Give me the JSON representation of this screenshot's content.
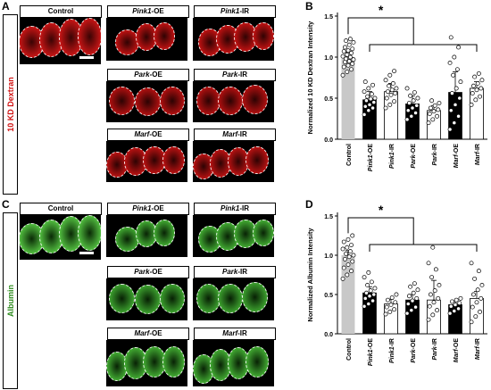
{
  "panels": {
    "A": {
      "letter": "A",
      "side_label": "10 KD Dextran",
      "side_color": "#d01010",
      "tiles": [
        {
          "label": "Control",
          "tint": "#e01818",
          "base": "#3a0404"
        },
        {
          "label": "Pink1-OE",
          "tint": "#d81414",
          "base": "#300303"
        },
        {
          "label": "Pink1-IR",
          "tint": "#d81414",
          "base": "#300303"
        },
        {
          "label": "Park-OE",
          "tint": "#c81212",
          "base": "#2c0303"
        },
        {
          "label": "Park-IR",
          "tint": "#c81212",
          "base": "#2c0303"
        },
        {
          "label": "Marf-OE",
          "tint": "#d01414",
          "base": "#2e0303"
        },
        {
          "label": "Marf-IR",
          "tint": "#d01414",
          "base": "#2e0303"
        }
      ]
    },
    "C": {
      "letter": "C",
      "side_label": "Albumin",
      "side_color": "#2e8b1e",
      "tiles": [
        {
          "label": "Control",
          "tint": "#5fd84a",
          "base": "#0a2a06"
        },
        {
          "label": "Pink1-OE",
          "tint": "#4cc23a",
          "base": "#082205"
        },
        {
          "label": "Pink1-IR",
          "tint": "#4cc23a",
          "base": "#082205"
        },
        {
          "label": "Park-OE",
          "tint": "#46b836",
          "base": "#072004"
        },
        {
          "label": "Park-IR",
          "tint": "#46b836",
          "base": "#072004"
        },
        {
          "label": "Marf-OE",
          "tint": "#4cc23a",
          "base": "#082205"
        },
        {
          "label": "Marf-IR",
          "tint": "#4cc23a",
          "base": "#082205"
        }
      ]
    }
  },
  "chart_data": [
    {
      "panel": "B",
      "type": "bar",
      "ylabel": "Normalized 10 KD Dextran Intensity",
      "ylim": [
        0,
        1.5
      ],
      "yticks": [
        "0.0",
        "0.5",
        "1.0",
        "1.5"
      ],
      "significance": "*",
      "categories": [
        "Control",
        "Pink1-OE",
        "Pink1-IR",
        "Park-OE",
        "Park-IR",
        "Marf-OE",
        "Marf-IR"
      ],
      "values": [
        1.0,
        0.48,
        0.58,
        0.43,
        0.35,
        0.57,
        0.62
      ],
      "errors": [
        0.06,
        0.1,
        0.1,
        0.1,
        0.06,
        0.25,
        0.08
      ],
      "bar_colors": [
        "#c8c8c8",
        "#000000",
        "#ffffff",
        "#000000",
        "#ffffff",
        "#000000",
        "#ffffff"
      ],
      "points": [
        [
          0.78,
          0.82,
          0.85,
          0.88,
          0.9,
          0.92,
          0.94,
          0.95,
          0.97,
          0.98,
          1.0,
          1.01,
          1.03,
          1.05,
          1.07,
          1.08,
          1.1,
          1.12,
          1.15,
          1.18,
          1.2,
          1.22
        ],
        [
          0.3,
          0.35,
          0.38,
          0.4,
          0.42,
          0.45,
          0.47,
          0.49,
          0.5,
          0.52,
          0.55,
          0.58,
          0.62,
          0.66,
          0.7
        ],
        [
          0.38,
          0.42,
          0.46,
          0.5,
          0.54,
          0.56,
          0.58,
          0.6,
          0.62,
          0.65,
          0.68,
          0.72,
          0.78,
          0.83
        ],
        [
          0.24,
          0.28,
          0.32,
          0.35,
          0.38,
          0.41,
          0.44,
          0.47,
          0.5,
          0.53,
          0.57,
          0.62
        ],
        [
          0.2,
          0.24,
          0.28,
          0.31,
          0.34,
          0.36,
          0.38,
          0.41,
          0.44,
          0.47
        ],
        [
          0.12,
          0.2,
          0.28,
          0.35,
          0.42,
          0.5,
          0.56,
          0.62,
          0.7,
          0.78,
          0.85,
          0.93,
          1.0,
          1.12,
          1.24
        ],
        [
          0.42,
          0.48,
          0.52,
          0.56,
          0.6,
          0.62,
          0.65,
          0.68,
          0.72,
          0.76,
          0.8
        ]
      ]
    },
    {
      "panel": "D",
      "type": "bar",
      "ylabel": "Normalized Albumin Intensity",
      "ylim": [
        0,
        1.5
      ],
      "yticks": [
        "0.0",
        "0.5",
        "1.0",
        "1.5"
      ],
      "significance": "*",
      "categories": [
        "Control",
        "Pink1-OE",
        "Pink1-IR",
        "Park-OE",
        "Park-IR",
        "Marf-OE",
        "Marf-IR"
      ],
      "values": [
        1.0,
        0.52,
        0.38,
        0.43,
        0.43,
        0.37,
        0.45
      ],
      "errors": [
        0.06,
        0.08,
        0.06,
        0.07,
        0.25,
        0.05,
        0.09
      ],
      "bar_colors": [
        "#c8c8c8",
        "#000000",
        "#ffffff",
        "#000000",
        "#ffffff",
        "#000000",
        "#ffffff"
      ],
      "points": [
        [
          0.7,
          0.75,
          0.8,
          0.84,
          0.88,
          0.92,
          0.95,
          0.98,
          1.0,
          1.02,
          1.05,
          1.08,
          1.1,
          1.13,
          1.17,
          1.2,
          1.25
        ],
        [
          0.35,
          0.38,
          0.42,
          0.45,
          0.48,
          0.5,
          0.52,
          0.55,
          0.58,
          0.62,
          0.66,
          0.72,
          0.78
        ],
        [
          0.25,
          0.28,
          0.31,
          0.34,
          0.37,
          0.4,
          0.43,
          0.46,
          0.5
        ],
        [
          0.26,
          0.3,
          0.34,
          0.38,
          0.42,
          0.45,
          0.48,
          0.52,
          0.56,
          0.6,
          0.64
        ],
        [
          0.18,
          0.24,
          0.3,
          0.35,
          0.4,
          0.45,
          0.5,
          0.55,
          0.62,
          0.72,
          0.82,
          0.9,
          1.1
        ],
        [
          0.26,
          0.29,
          0.32,
          0.35,
          0.37,
          0.39,
          0.41,
          0.43,
          0.45
        ],
        [
          0.15,
          0.22,
          0.28,
          0.34,
          0.4,
          0.45,
          0.5,
          0.56,
          0.62,
          0.7,
          0.8,
          0.9
        ]
      ]
    }
  ]
}
